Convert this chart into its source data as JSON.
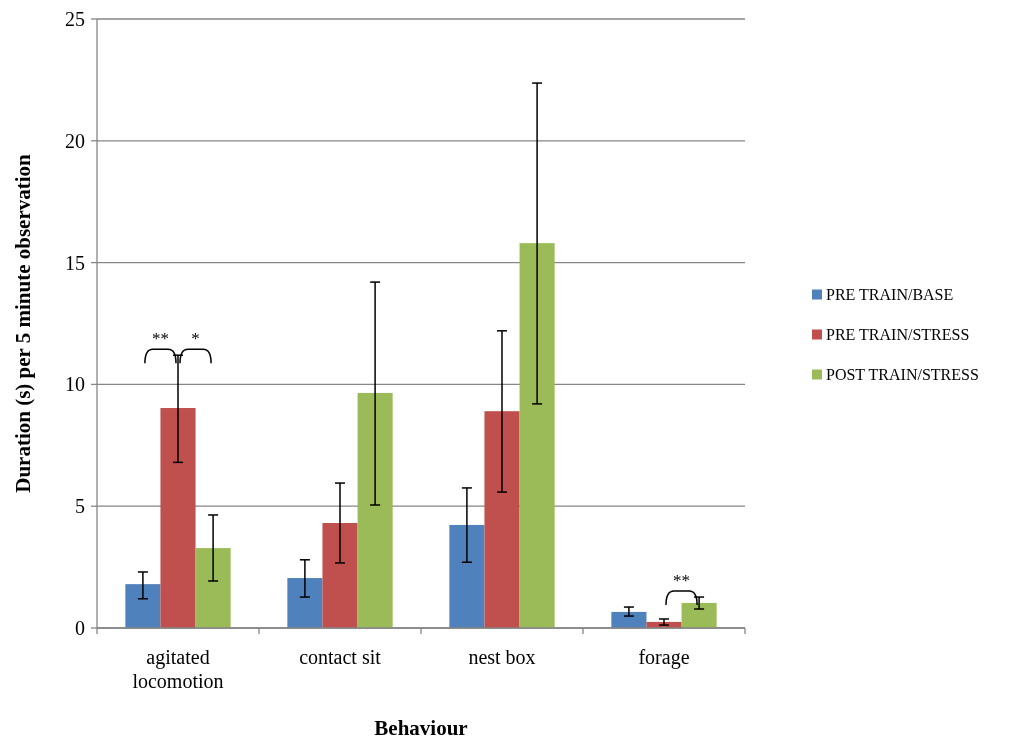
{
  "chart_data": {
    "type": "bar",
    "xlabel": "Behaviour",
    "ylabel": "Duration (s) per 5 minute observation",
    "categories": [
      "agitated locomotion",
      "contact sit",
      "nest box",
      "forage"
    ],
    "series": [
      {
        "name": "PRE TRAIN/BASE",
        "color": "#4f81bd",
        "values": [
          1.8,
          2.05,
          4.23,
          0.66
        ],
        "errors": [
          [
            1.2,
            2.3
          ],
          [
            1.27,
            2.8
          ],
          [
            2.7,
            5.75
          ],
          [
            0.49,
            0.86
          ]
        ]
      },
      {
        "name": "PRE TRAIN/STRESS",
        "color": "#c0504d",
        "values": [
          9.03,
          4.31,
          8.9,
          0.25
        ],
        "errors": [
          [
            6.8,
            11.2
          ],
          [
            2.67,
            5.95
          ],
          [
            5.58,
            12.2
          ],
          [
            0.12,
            0.37
          ]
        ]
      },
      {
        "name": "POST TRAIN/STRESS",
        "color": "#9bbb59",
        "values": [
          3.28,
          9.65,
          15.8,
          1.03
        ],
        "errors": [
          [
            1.93,
            4.64
          ],
          [
            5.05,
            14.2
          ],
          [
            9.2,
            22.37
          ],
          [
            0.78,
            1.27
          ]
        ]
      }
    ],
    "annotations": [
      "**",
      "*",
      "**"
    ],
    "ylim": [
      0,
      25
    ],
    "yticks": [
      0,
      5,
      10,
      15,
      20,
      25
    ],
    "grid": "y",
    "legend": "right"
  }
}
